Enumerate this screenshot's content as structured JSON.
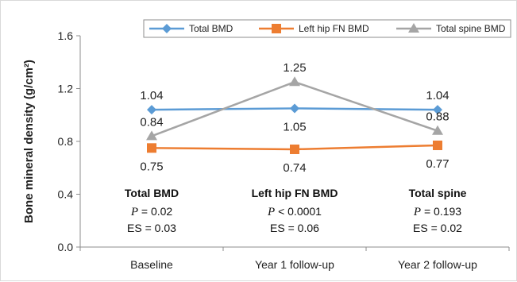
{
  "chart_data": {
    "type": "line",
    "ylabel": "Bone mineral density (g/cm²)",
    "xlabel": "",
    "categories": [
      "Baseline",
      "Year 1 follow-up",
      "Year 2 follow-up"
    ],
    "ylim": [
      0.0,
      1.6
    ],
    "yticks": [
      "0.0",
      "0.4",
      "0.8",
      "1.2",
      "1.6"
    ],
    "legend_position": "top-right",
    "grid": false,
    "series": [
      {
        "name": "Total BMD",
        "values": [
          1.04,
          1.05,
          1.04
        ],
        "labels": [
          "1.04",
          "1.05",
          "1.04"
        ],
        "label_side": [
          "above",
          "below",
          "above"
        ],
        "color": "#5b9bd5",
        "marker": "diamond"
      },
      {
        "name": "Left hip FN BMD",
        "values": [
          0.75,
          0.74,
          0.77
        ],
        "labels": [
          "0.75",
          "0.74",
          "0.77"
        ],
        "label_side": [
          "below",
          "below",
          "below"
        ],
        "color": "#ed7d31",
        "marker": "square"
      },
      {
        "name": "Total spine BMD",
        "values": [
          0.84,
          1.25,
          0.88
        ],
        "labels": [
          "0.84",
          "1.25",
          "0.88"
        ],
        "label_side": [
          "above",
          "above",
          "above"
        ],
        "color": "#a5a5a5",
        "marker": "triangle"
      }
    ],
    "annotations": [
      {
        "title": "Total BMD",
        "p_symbol": "P",
        "p_text": " = 0.02",
        "es": "ES = 0.03"
      },
      {
        "title": "Left hip FN BMD",
        "p_symbol": "P",
        "p_text": " < 0.0001",
        "es": "ES = 0.06"
      },
      {
        "title": "Total spine",
        "p_symbol": "P",
        "p_text": " = 0.193",
        "es": "ES = 0.02"
      }
    ]
  }
}
